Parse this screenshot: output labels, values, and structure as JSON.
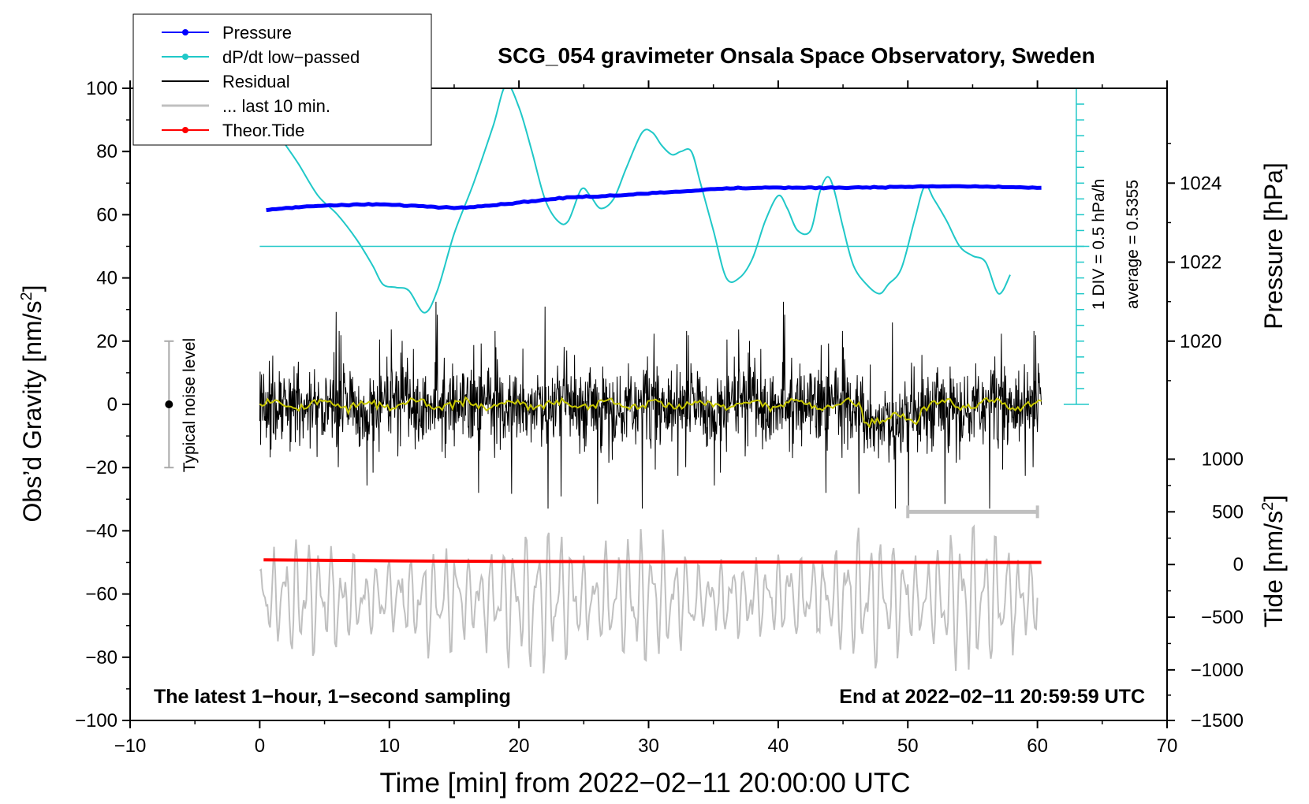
{
  "chart_data": {
    "type": "line",
    "title": "SCG_054 gravimeter Onsala Space Observatory, Sweden",
    "xlabel": "Time [min] from 2022−02−11 20:00:00 UTC",
    "ylabel_left": "Obs’d Gravity [nm/s²]",
    "ylabel_left_main": "Obs’d Gravity [nm/s",
    "ylabel_left_sup": "2",
    "ylabel_left_end": "]",
    "ylabel_pressure": "Pressure [hPa]",
    "ylabel_tide_main": "Tide [nm/s",
    "ylabel_tide_sup": "2",
    "ylabel_tide_end": "]",
    "xlim": [
      -10,
      70
    ],
    "ylim": [
      -100,
      100
    ],
    "x_ticks": [
      -10,
      0,
      10,
      20,
      30,
      40,
      50,
      60,
      70
    ],
    "x_tick_labels": [
      "−10",
      "0",
      "10",
      "20",
      "30",
      "40",
      "50",
      "60",
      "70"
    ],
    "y_ticks": [
      -100,
      -80,
      -60,
      -40,
      -20,
      0,
      20,
      40,
      60,
      80,
      100
    ],
    "y_tick_labels": [
      "−100",
      "−80",
      "−60",
      "−40",
      "−20",
      "0",
      "20",
      "40",
      "60",
      "80",
      "100"
    ],
    "pressure_axis": {
      "ticks": [
        1020,
        1022,
        1024
      ],
      "tick_labels": [
        "1020",
        "1022",
        "1024"
      ],
      "gravity_equiv": [
        20,
        45,
        70
      ]
    },
    "tide_axis": {
      "ticks": [
        1000,
        500,
        0,
        -500,
        -1000,
        -1500
      ],
      "tick_labels": [
        "1000",
        "500",
        "0",
        "−500",
        "−1000",
        "−1500"
      ],
      "gravity_equiv": [
        -17.33,
        -34,
        -50.67,
        -67.33,
        -84,
        -100
      ]
    },
    "legend": {
      "position": "top-left",
      "entries": [
        {
          "label": "Pressure",
          "color": "#0000ff",
          "marker": true
        },
        {
          "label": "dP/dt low−passed",
          "color": "#20c8c8",
          "marker": true
        },
        {
          "label": "Residual",
          "color": "#000000",
          "marker": false
        },
        {
          "label": "... last 10 min.",
          "color": "#c0c0c0",
          "marker": false
        },
        {
          "label": "Theor.Tide",
          "color": "#ff0000",
          "marker": true
        }
      ]
    },
    "annotations": {
      "footer_left": "The latest 1−hour, 1−second sampling",
      "footer_right": "End at 2022−02−11 20:59:59 UTC",
      "dpdt_scale": "1 DIV = 0.5 hPa/h",
      "dpdt_average": "average = 0.5355",
      "noise_label": "Typical noise level",
      "noise_level": {
        "x": -7,
        "center": 0,
        "range": [
          -20,
          20
        ]
      },
      "last10_bar": {
        "x_range": [
          50,
          60
        ],
        "y": -34
      },
      "dpdt_axis": {
        "x": 63,
        "range": [
          0,
          100
        ],
        "divisions": 20,
        "zero_line": 50
      }
    },
    "series": [
      {
        "name": "Pressure",
        "color": "#0000ff",
        "x": [
          0.5,
          3,
          6,
          9,
          12,
          15,
          18,
          21,
          24,
          27,
          30,
          33,
          36,
          39,
          42,
          45,
          48,
          51,
          54,
          57,
          60.3
        ],
        "y": [
          61.5,
          62.5,
          63.0,
          63.3,
          62.8,
          62.2,
          63.0,
          64.3,
          65.5,
          66.0,
          66.8,
          67.5,
          68.3,
          68.6,
          68.5,
          68.6,
          68.7,
          68.9,
          69.0,
          68.8,
          68.5
        ]
      },
      {
        "name": "dP/dt low−passed",
        "color": "#20c8c8",
        "x": [
          2,
          3,
          4.5,
          6,
          7.5,
          8.7,
          9.5,
          10.5,
          11.5,
          12.7,
          13.7,
          15,
          16.5,
          18,
          19,
          20,
          21,
          22,
          23,
          23.8,
          24.8,
          25.5,
          26.3,
          27.3,
          28.3,
          29.5,
          30.3,
          31,
          31.8,
          32.5,
          33.3,
          34,
          35,
          36,
          37,
          38,
          39,
          40,
          40.7,
          41.5,
          42.5,
          43.2,
          43.8,
          44.3,
          45,
          45.8,
          46.8,
          47.8,
          48.5,
          49.5,
          50.5,
          51.3,
          52,
          53,
          54,
          55,
          56,
          57,
          57.9
        ],
        "y": [
          82,
          76,
          66,
          60,
          52,
          44,
          38,
          37,
          36,
          29,
          36,
          54,
          70,
          88,
          101,
          94,
          80,
          65,
          58,
          58,
          68,
          66,
          62,
          65,
          75,
          86,
          86,
          82,
          79,
          80,
          80,
          70,
          55,
          40,
          40,
          46,
          58,
          66,
          62,
          55,
          55,
          67,
          72,
          68,
          56,
          44,
          38,
          35,
          38,
          43,
          58,
          69,
          65,
          58,
          50,
          47,
          45,
          35,
          41
        ]
      },
      {
        "name": "Theor.Tide",
        "color": "#ff0000",
        "x": [
          0.3,
          10,
          20,
          30,
          40,
          50,
          60.3
        ],
        "y": [
          -49.2,
          -49.5,
          -49.7,
          -49.8,
          -49.9,
          -50.0,
          -50.0
        ]
      },
      {
        "name": "Residual",
        "color": "#000000",
        "description_range": [
          -33,
          37
        ]
      },
      {
        "name": "... last 10 min.",
        "color": "#c0c0c0",
        "description_range": [
          -87,
          -36
        ]
      }
    ]
  }
}
